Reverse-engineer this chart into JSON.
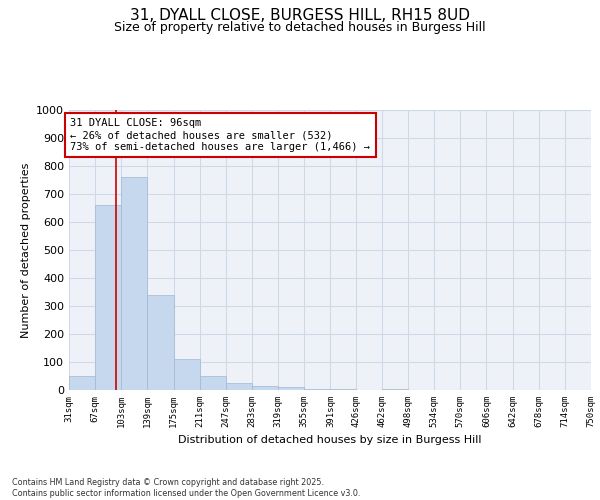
{
  "title_line1": "31, DYALL CLOSE, BURGESS HILL, RH15 8UD",
  "title_line2": "Size of property relative to detached houses in Burgess Hill",
  "xlabel": "Distribution of detached houses by size in Burgess Hill",
  "ylabel": "Number of detached properties",
  "bar_edges": [
    31,
    67,
    103,
    139,
    175,
    211,
    247,
    283,
    319,
    355,
    391,
    426,
    462,
    498,
    534,
    570,
    606,
    642,
    678,
    714,
    750
  ],
  "bar_heights": [
    50,
    660,
    760,
    340,
    110,
    50,
    25,
    15,
    10,
    5,
    5,
    0,
    5,
    0,
    0,
    0,
    0,
    0,
    0,
    0
  ],
  "bar_color": "#c5d8ed",
  "bar_edge_color": "#a0b8d0",
  "grid_color": "#d0d8e8",
  "background_color": "#eef2f8",
  "vline_x": 96,
  "vline_color": "#cc0000",
  "annotation_box_text": "31 DYALL CLOSE: 96sqm\n← 26% of detached houses are smaller (532)\n73% of semi-detached houses are larger (1,466) →",
  "annotation_box_color": "#cc0000",
  "ylim": [
    0,
    1000
  ],
  "yticks": [
    0,
    100,
    200,
    300,
    400,
    500,
    600,
    700,
    800,
    900,
    1000
  ],
  "footnote": "Contains HM Land Registry data © Crown copyright and database right 2025.\nContains public sector information licensed under the Open Government Licence v3.0.",
  "tick_labels": [
    "31sqm",
    "67sqm",
    "103sqm",
    "139sqm",
    "175sqm",
    "211sqm",
    "247sqm",
    "283sqm",
    "319sqm",
    "355sqm",
    "391sqm",
    "426sqm",
    "462sqm",
    "498sqm",
    "534sqm",
    "570sqm",
    "606sqm",
    "642sqm",
    "678sqm",
    "714sqm",
    "750sqm"
  ],
  "figsize": [
    6.0,
    5.0
  ],
  "dpi": 100
}
